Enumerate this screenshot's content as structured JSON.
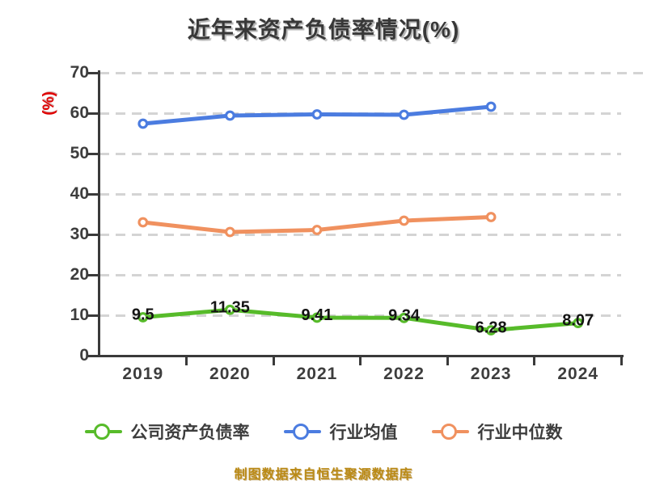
{
  "title": "近年来资产负债率情况(%)",
  "y_axis_label": "(%)",
  "footer_note": "制图数据来自恒生聚源数据库",
  "colors": {
    "background": "#ffffff",
    "title_text": "#383838",
    "axis": "#3a3a3a",
    "tick_text": "#3d3d3d",
    "grid": "#d4d4d4",
    "y_axis_label_red": "#e00000",
    "data_label": "#141414",
    "marker_fill": "#ffffff",
    "footer_text": "#ba8a16",
    "series": {
      "company": "#57bb2a",
      "industry_avg": "#4b7ce0",
      "industry_median": "#f0915f"
    }
  },
  "chart_data": {
    "type": "line",
    "title": "近年来资产负债率情况(%)",
    "xlabel": "",
    "ylabel": "(%)",
    "x_categories": [
      "2019",
      "2020",
      "2021",
      "2022",
      "2023",
      "2024"
    ],
    "ylim": [
      0,
      70
    ],
    "y_ticks": [
      0,
      10,
      20,
      30,
      40,
      50,
      60,
      70
    ],
    "grid": "horizontal-dashed",
    "legend_position": "bottom",
    "series": [
      {
        "key": "company",
        "name": "公司资产负债率",
        "values": [
          9.5,
          11.35,
          9.41,
          9.34,
          6.28,
          8.07
        ],
        "point_labels": [
          "9.5",
          "11.35",
          "9.41",
          "9.34",
          "6.28",
          "8.07"
        ]
      },
      {
        "key": "industry_avg",
        "name": "行业均值",
        "values": [
          57.4,
          59.4,
          59.7,
          59.6,
          61.6
        ],
        "point_labels": null
      },
      {
        "key": "industry_median",
        "name": "行业中位数",
        "values": [
          33.0,
          30.6,
          31.1,
          33.4,
          34.3
        ],
        "point_labels": null
      }
    ]
  }
}
